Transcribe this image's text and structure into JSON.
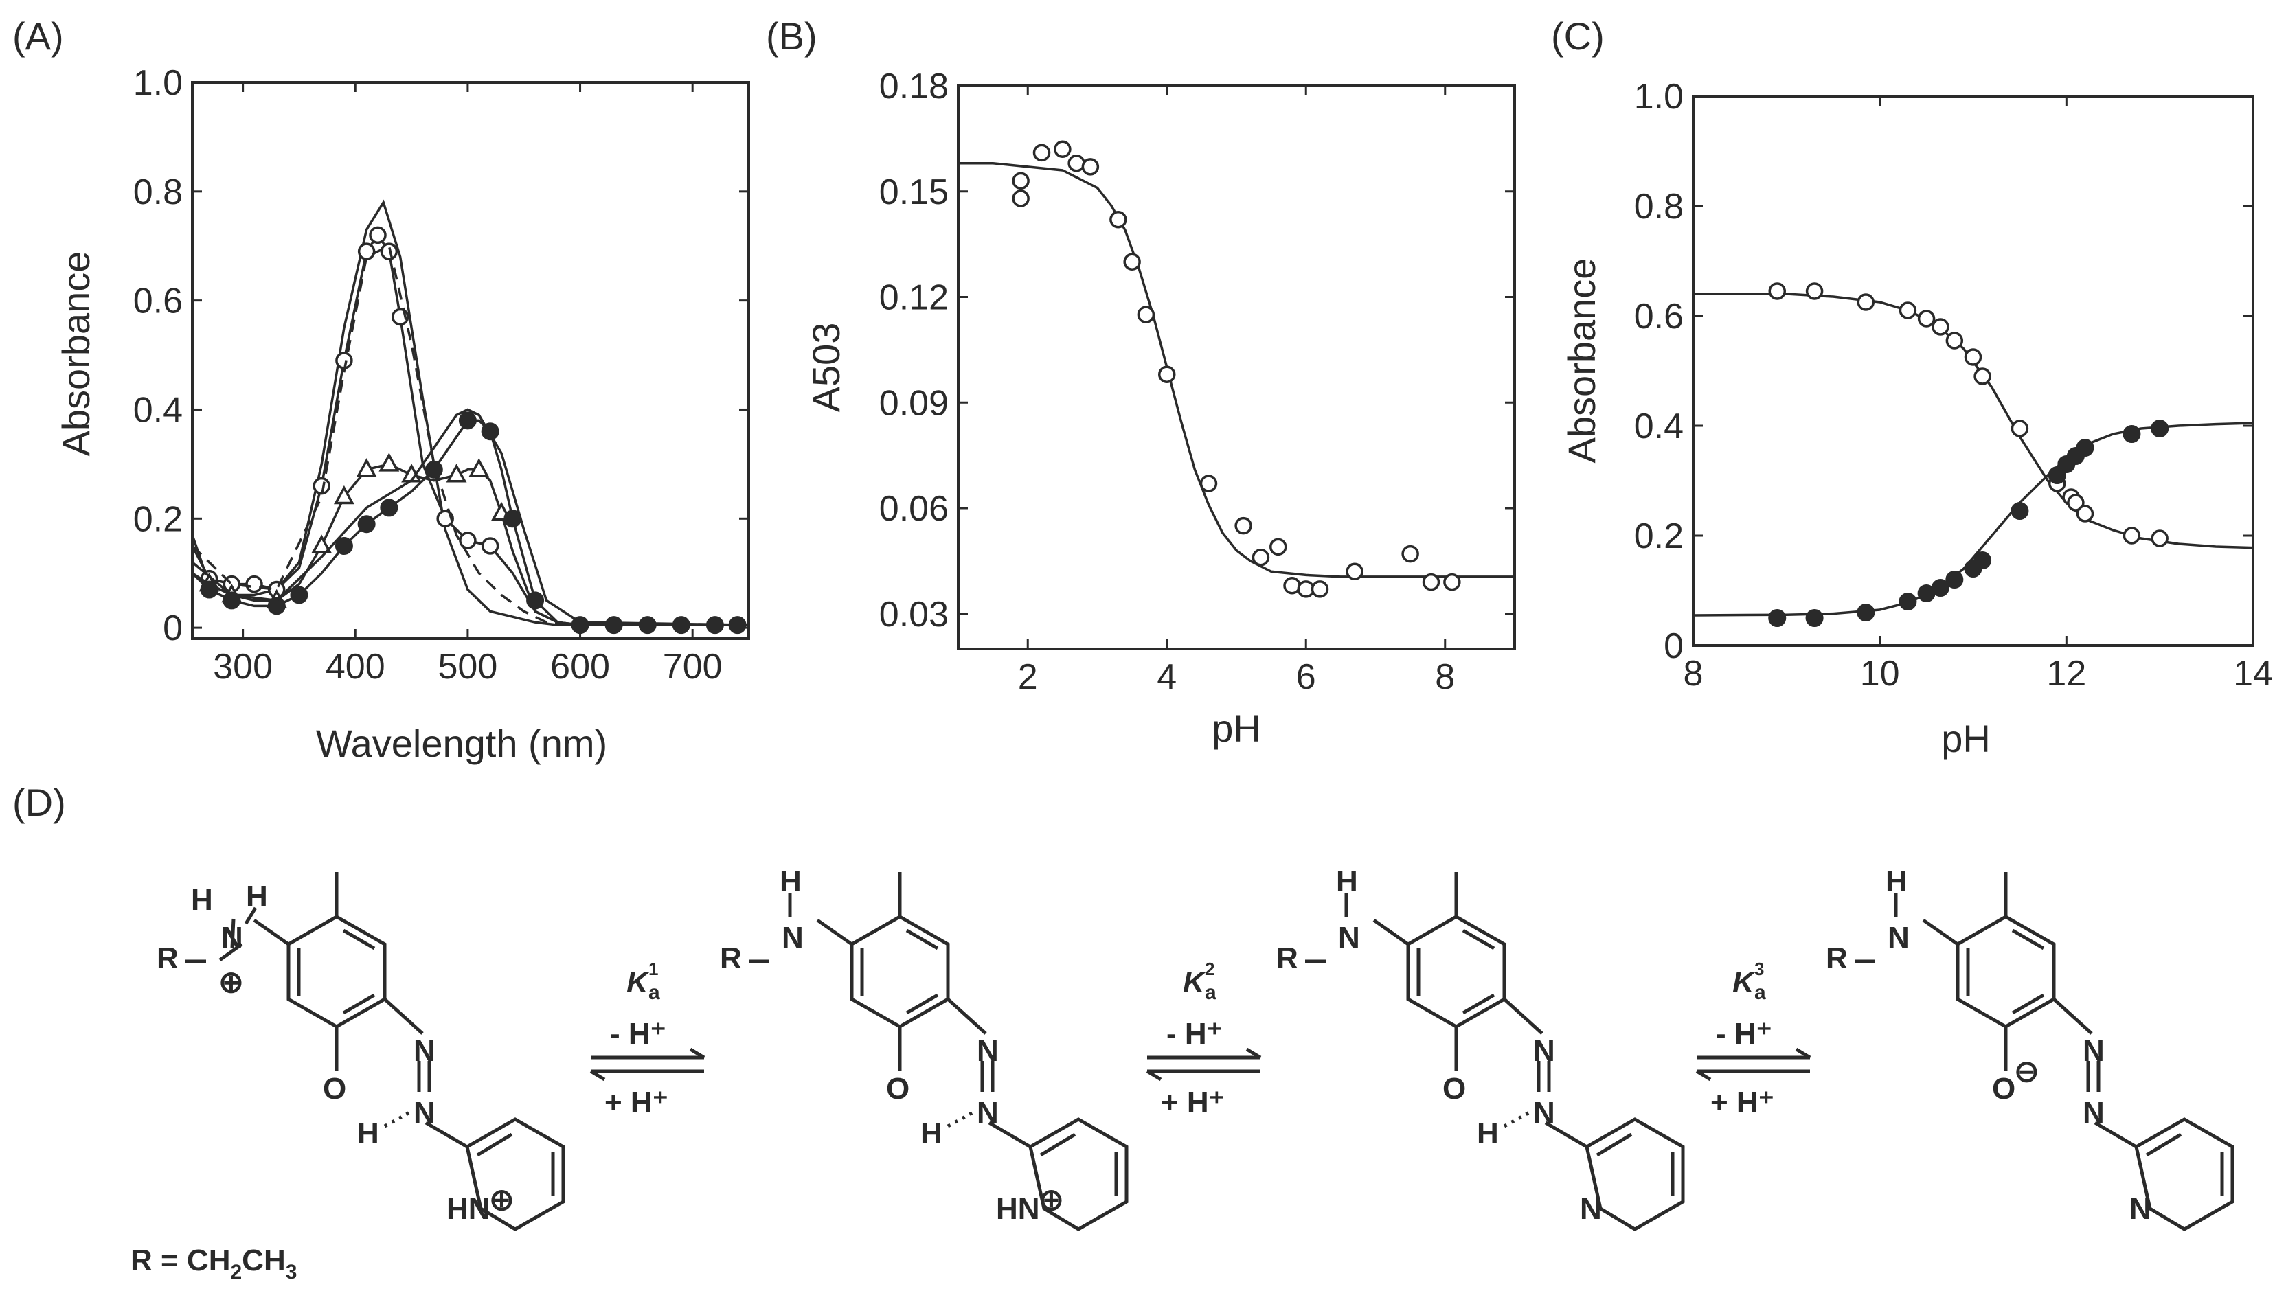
{
  "panels": {
    "A": {
      "label": "(A)"
    },
    "B": {
      "label": "(B)"
    },
    "C": {
      "label": "(C)"
    },
    "D": {
      "label": "(D)"
    }
  },
  "chart_data": [
    {
      "panel": "A",
      "type": "line",
      "xlabel": "Wavelength (nm)",
      "ylabel": "Absorbance",
      "xlim": [
        255,
        750
      ],
      "ylim": [
        -0.02,
        1.0
      ],
      "xticks": [
        "300",
        "400",
        "500",
        "600",
        "700"
      ],
      "yticks": [
        "0",
        "0.2",
        "0.4",
        "0.6",
        "0.8",
        "1.0"
      ],
      "series": [
        {
          "marker": "none",
          "style": "solid",
          "x": [
            255,
            270,
            290,
            310,
            330,
            350,
            370,
            390,
            410,
            425,
            440,
            460,
            480,
            500,
            520,
            540,
            560,
            580,
            600,
            650,
            700,
            750
          ],
          "y": [
            0.17,
            0.08,
            0.06,
            0.06,
            0.07,
            0.12,
            0.3,
            0.55,
            0.73,
            0.78,
            0.68,
            0.42,
            0.18,
            0.07,
            0.03,
            0.02,
            0.01,
            0.005,
            0.005,
            0.005,
            0.005,
            0.005
          ]
        },
        {
          "marker": "open-circle",
          "style": "solid",
          "x": [
            255,
            270,
            290,
            310,
            330,
            350,
            370,
            390,
            410,
            420,
            430,
            440,
            460,
            480,
            500,
            520,
            540,
            560,
            580,
            600,
            650,
            700,
            750
          ],
          "y": [
            0.15,
            0.09,
            0.08,
            0.08,
            0.07,
            0.11,
            0.26,
            0.49,
            0.69,
            0.72,
            0.69,
            0.57,
            0.3,
            0.2,
            0.16,
            0.15,
            0.1,
            0.03,
            0.01,
            0.005,
            0.005,
            0.005,
            0.005
          ],
          "markers_x": [
            270,
            290,
            310,
            330,
            370,
            390,
            410,
            420,
            430,
            440,
            480,
            500,
            520
          ],
          "markers_y": [
            0.09,
            0.08,
            0.08,
            0.07,
            0.26,
            0.49,
            0.69,
            0.72,
            0.69,
            0.57,
            0.2,
            0.16,
            0.15
          ]
        },
        {
          "marker": "none",
          "style": "dashed",
          "x": [
            255,
            290,
            330,
            370,
            390,
            410,
            430,
            450,
            470,
            490,
            510,
            530,
            550,
            570,
            600,
            750
          ],
          "y": [
            0.15,
            0.08,
            0.07,
            0.24,
            0.47,
            0.68,
            0.7,
            0.52,
            0.3,
            0.17,
            0.1,
            0.06,
            0.03,
            0.01,
            0.005,
            0.005
          ]
        },
        {
          "marker": "open-triangle",
          "style": "solid",
          "x": [
            255,
            270,
            290,
            310,
            330,
            350,
            370,
            390,
            410,
            430,
            450,
            470,
            490,
            500,
            510,
            520,
            530,
            540,
            560,
            580,
            600,
            650,
            700,
            750
          ],
          "y": [
            0.1,
            0.08,
            0.06,
            0.05,
            0.05,
            0.08,
            0.15,
            0.24,
            0.29,
            0.3,
            0.28,
            0.27,
            0.28,
            0.29,
            0.29,
            0.27,
            0.21,
            0.14,
            0.03,
            0.01,
            0.005,
            0.005,
            0.005,
            0.005
          ],
          "markers_x": [
            270,
            290,
            330,
            370,
            390,
            410,
            430,
            450,
            490,
            510,
            530
          ],
          "markers_y": [
            0.08,
            0.06,
            0.05,
            0.15,
            0.24,
            0.29,
            0.3,
            0.28,
            0.28,
            0.29,
            0.21
          ]
        },
        {
          "marker": "filled-circle",
          "style": "solid",
          "x": [
            255,
            270,
            290,
            310,
            330,
            350,
            370,
            390,
            410,
            430,
            450,
            470,
            490,
            500,
            510,
            520,
            530,
            540,
            560,
            580,
            600,
            650,
            700,
            750
          ],
          "y": [
            0.1,
            0.07,
            0.05,
            0.04,
            0.04,
            0.06,
            0.1,
            0.15,
            0.19,
            0.22,
            0.25,
            0.29,
            0.35,
            0.38,
            0.38,
            0.36,
            0.29,
            0.2,
            0.05,
            0.01,
            0.005,
            0.005,
            0.005,
            0.005
          ],
          "markers_x": [
            270,
            290,
            330,
            350,
            390,
            410,
            430,
            470,
            500,
            520,
            540,
            560,
            600,
            630,
            660,
            690,
            720,
            740
          ],
          "markers_y": [
            0.07,
            0.05,
            0.04,
            0.06,
            0.15,
            0.19,
            0.22,
            0.29,
            0.38,
            0.36,
            0.2,
            0.05,
            0.005,
            0.005,
            0.005,
            0.005,
            0.005,
            0.005
          ]
        },
        {
          "marker": "none",
          "style": "solid",
          "x": [
            255,
            290,
            330,
            370,
            410,
            450,
            470,
            490,
            500,
            510,
            530,
            550,
            570,
            600,
            750
          ],
          "y": [
            0.12,
            0.06,
            0.05,
            0.13,
            0.22,
            0.27,
            0.33,
            0.39,
            0.4,
            0.39,
            0.32,
            0.18,
            0.05,
            0.01,
            0.005
          ]
        }
      ]
    },
    {
      "panel": "B",
      "type": "scatter",
      "xlabel": "pH",
      "ylabel": "A503",
      "xlim": [
        1,
        9
      ],
      "ylim": [
        0.02,
        0.18
      ],
      "xticks": [
        "2",
        "4",
        "6",
        "8"
      ],
      "yticks": [
        "0.03",
        "0.06",
        "0.09",
        "0.12",
        "0.15",
        "0.18"
      ],
      "points": {
        "x": [
          1.9,
          1.9,
          2.2,
          2.5,
          2.7,
          2.9,
          3.3,
          3.5,
          3.7,
          4.0,
          4.6,
          5.1,
          5.35,
          5.6,
          5.8,
          6.0,
          6.2,
          6.7,
          7.5,
          7.8,
          8.1
        ],
        "y": [
          0.148,
          0.153,
          0.161,
          0.162,
          0.158,
          0.157,
          0.142,
          0.13,
          0.115,
          0.098,
          0.067,
          0.055,
          0.046,
          0.049,
          0.038,
          0.037,
          0.037,
          0.042,
          0.047,
          0.039,
          0.039
        ]
      },
      "fit": {
        "x": [
          1.0,
          1.5,
          2.0,
          2.5,
          3.0,
          3.2,
          3.4,
          3.6,
          3.8,
          4.0,
          4.2,
          4.4,
          4.6,
          4.8,
          5.0,
          5.2,
          5.5,
          6.0,
          6.5,
          7.0,
          8.0,
          9.0
        ],
        "y": [
          0.158,
          0.158,
          0.157,
          0.156,
          0.151,
          0.146,
          0.139,
          0.128,
          0.115,
          0.1,
          0.085,
          0.071,
          0.061,
          0.053,
          0.048,
          0.045,
          0.042,
          0.041,
          0.0405,
          0.0405,
          0.0405,
          0.0405
        ]
      }
    },
    {
      "panel": "C",
      "type": "scatter",
      "xlabel": "pH",
      "ylabel": "Absorbance",
      "xlim": [
        8,
        14
      ],
      "ylim": [
        0,
        1.0
      ],
      "xticks": [
        "8",
        "10",
        "12",
        "14"
      ],
      "yticks": [
        "0",
        "0.2",
        "0.4",
        "0.6",
        "0.8",
        "1.0"
      ],
      "series": [
        {
          "marker": "open-circle",
          "x": [
            8.9,
            9.3,
            9.85,
            10.3,
            10.5,
            10.65,
            10.8,
            11.0,
            11.1,
            11.5,
            11.9,
            12.05,
            12.1,
            12.2,
            12.7,
            13.0
          ],
          "y": [
            0.645,
            0.645,
            0.625,
            0.61,
            0.595,
            0.58,
            0.555,
            0.525,
            0.49,
            0.395,
            0.295,
            0.27,
            0.26,
            0.24,
            0.2,
            0.195
          ],
          "fit_x": [
            8.0,
            9.0,
            9.5,
            10.0,
            10.3,
            10.6,
            10.9,
            11.2,
            11.5,
            11.8,
            12.0,
            12.2,
            12.5,
            12.8,
            13.2,
            13.6,
            14.0
          ],
          "fit_y": [
            0.64,
            0.64,
            0.635,
            0.625,
            0.61,
            0.585,
            0.54,
            0.47,
            0.38,
            0.3,
            0.26,
            0.23,
            0.21,
            0.195,
            0.185,
            0.18,
            0.178
          ]
        },
        {
          "marker": "filled-circle",
          "x": [
            8.9,
            9.3,
            9.85,
            10.3,
            10.5,
            10.65,
            10.8,
            11.0,
            11.1,
            11.5,
            11.9,
            12.0,
            12.1,
            12.2,
            12.7,
            13.0
          ],
          "y": [
            0.05,
            0.05,
            0.06,
            0.08,
            0.095,
            0.105,
            0.12,
            0.14,
            0.155,
            0.245,
            0.31,
            0.33,
            0.345,
            0.36,
            0.385,
            0.395
          ],
          "fit_x": [
            8.0,
            9.0,
            9.5,
            10.0,
            10.3,
            10.6,
            10.9,
            11.2,
            11.5,
            11.8,
            12.0,
            12.2,
            12.5,
            12.8,
            13.2,
            13.6,
            14.0
          ],
          "fit_y": [
            0.055,
            0.056,
            0.058,
            0.065,
            0.078,
            0.1,
            0.14,
            0.2,
            0.26,
            0.31,
            0.34,
            0.365,
            0.385,
            0.395,
            0.4,
            0.403,
            0.405
          ]
        }
      ]
    }
  ],
  "scheme": {
    "r_label": "R",
    "n_label": "N",
    "h_label": "H",
    "o_label": "O",
    "hn_label": "HN",
    "plus_symbol": "⊕",
    "minus_symbol": "⊖",
    "r_definition_prefix": "R = CH",
    "r_definition_sub1": "2",
    "r_definition_mid": "CH",
    "r_definition_sub2": "3",
    "arrows": [
      {
        "k_symbol": "K",
        "k_sub": "a",
        "k_sup": "1",
        "forward": "- H⁺",
        "reverse": "+ H⁺"
      },
      {
        "k_symbol": "K",
        "k_sub": "a",
        "k_sup": "2",
        "forward": "- H⁺",
        "reverse": "+ H⁺"
      },
      {
        "k_symbol": "K",
        "k_sub": "a",
        "k_sup": "3",
        "forward": "- H⁺",
        "reverse": "+ H⁺"
      }
    ]
  }
}
